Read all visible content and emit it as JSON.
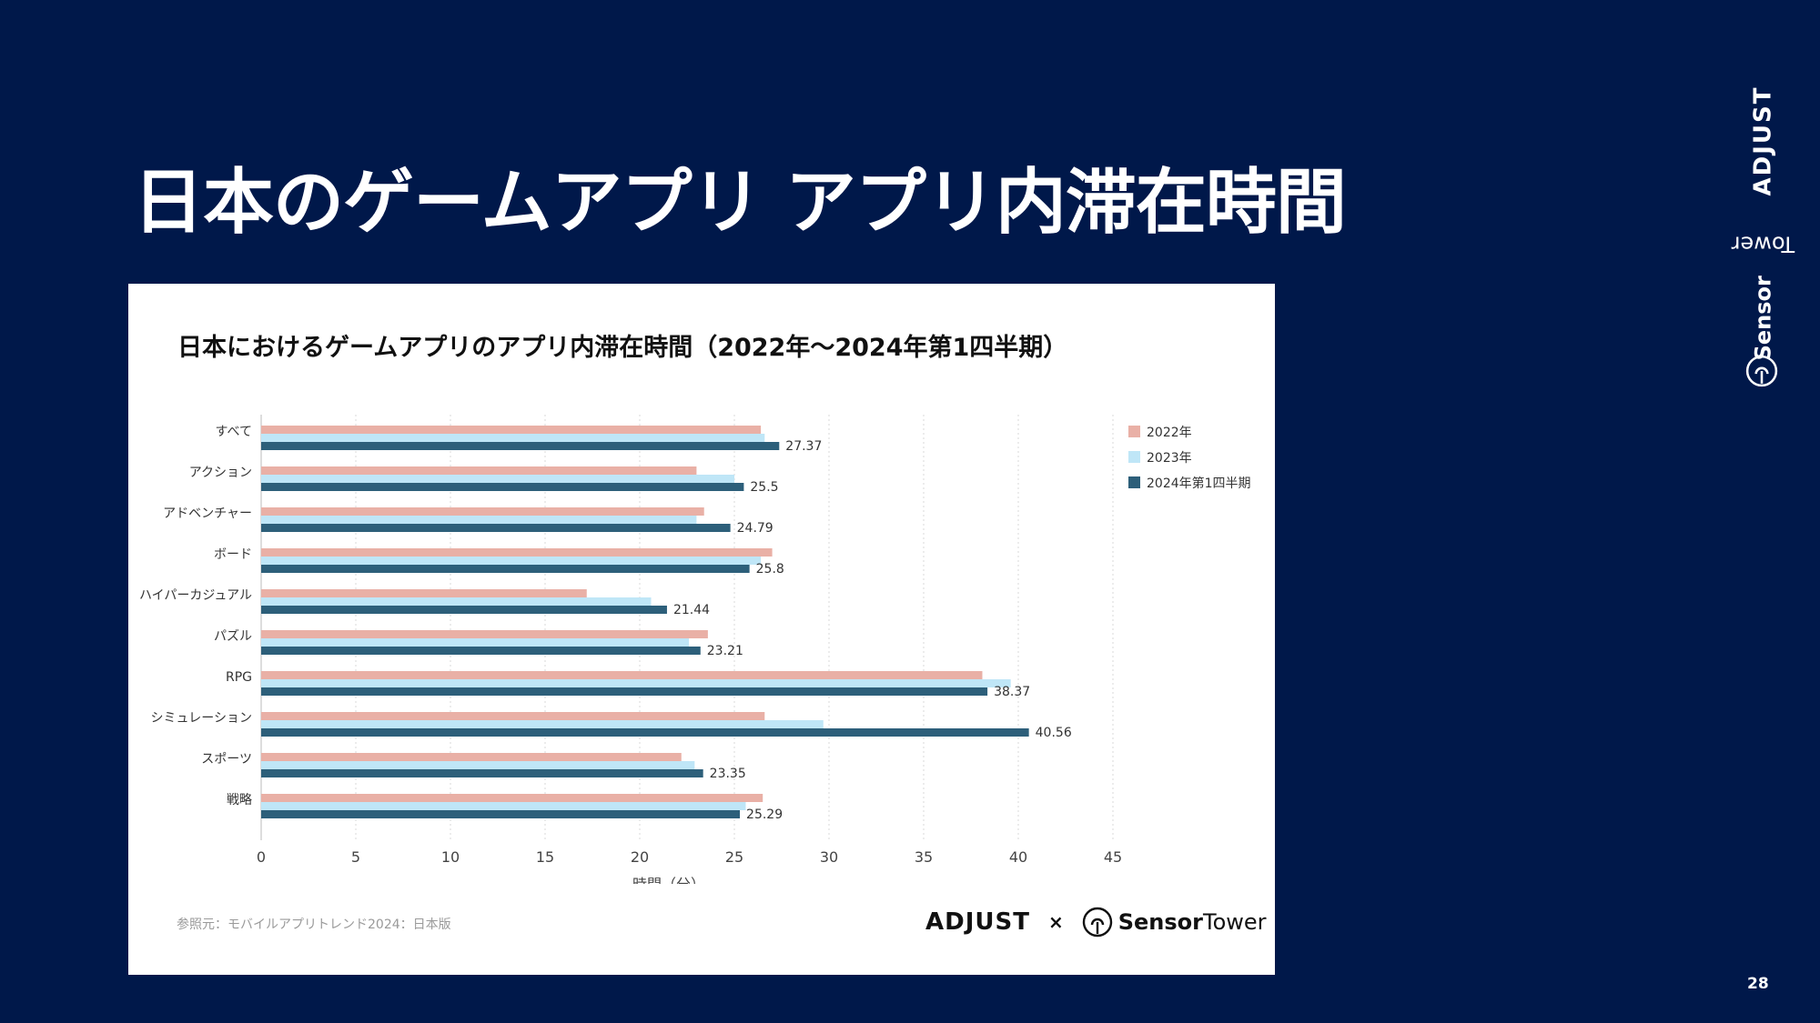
{
  "slide": {
    "title": "日本のゲームアプリ アプリ内滞在時間",
    "page_number": "28"
  },
  "logos": {
    "adjust": "ADJUST",
    "sensor_tower_bold": "Sensor",
    "sensor_tower_regular": "Tower",
    "separator": "×"
  },
  "source_note": "参照元：モバイルアプリトレンド2024：日本版",
  "chart_data": {
    "type": "bar",
    "orientation": "horizontal",
    "title": "日本におけるゲームアプリのアプリ内滞在時間（2022年〜2024年第1四半期）",
    "xlabel": "時間（分）",
    "ylabel": "",
    "xlim": [
      0,
      45
    ],
    "xticks": [
      0,
      5,
      10,
      15,
      20,
      25,
      30,
      35,
      40,
      45
    ],
    "grid": "vertical-dotted",
    "legend_position": "top-right",
    "categories": [
      "すべて",
      "アクション",
      "アドベンチャー",
      "ボード",
      "ハイパーカジュアル",
      "パズル",
      "RPG",
      "シミュレーション",
      "スポーツ",
      "戦略"
    ],
    "series": [
      {
        "name": "2022年",
        "color": "#e9b0a6",
        "values": [
          26.4,
          23.0,
          23.4,
          27.0,
          17.2,
          23.6,
          38.1,
          26.6,
          22.2,
          26.5
        ]
      },
      {
        "name": "2023年",
        "color": "#bfe6f7",
        "values": [
          26.6,
          25.0,
          23.0,
          26.4,
          20.6,
          22.6,
          39.6,
          29.7,
          22.9,
          25.6
        ]
      },
      {
        "name": "2024年第1四半期",
        "color": "#2d5f7a",
        "values": [
          27.37,
          25.5,
          24.79,
          25.8,
          21.44,
          23.21,
          38.37,
          40.56,
          23.35,
          25.29
        ]
      }
    ],
    "data_labels": [
      "27.37",
      "25.5",
      "24.79",
      "25.8",
      "21.44",
      "23.21",
      "38.37",
      "40.56",
      "23.35",
      "25.29"
    ]
  }
}
